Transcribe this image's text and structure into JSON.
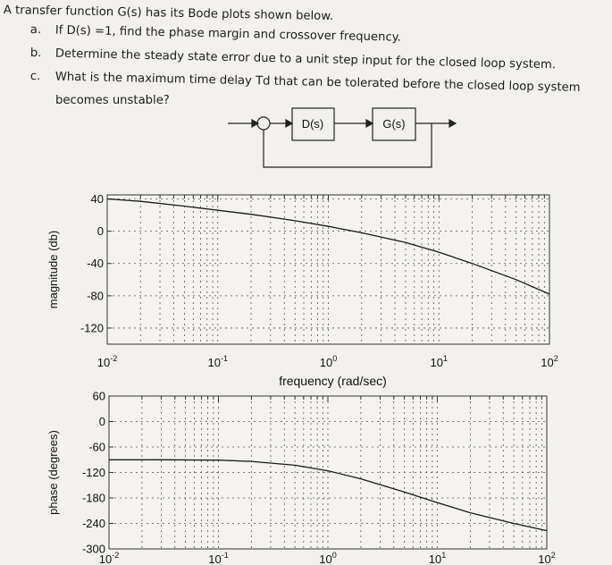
{
  "problem": {
    "intro": "A transfer function G(s) has its Bode plots shown below.",
    "parts": [
      {
        "label": "a.",
        "text": "If D(s) =1, find the phase margin and crossover frequency."
      },
      {
        "label": "b.",
        "text": "Determine the steady state error due to a unit step input for the closed loop system."
      },
      {
        "label": "c.",
        "text": "What is the maximum time delay Td that can be tolerated before the closed loop system"
      }
    ],
    "continuation": "becomes unstable?"
  },
  "block_diagram": {
    "controller": "D(s)",
    "plant": "G(s)"
  },
  "chart_data": [
    {
      "type": "line",
      "title": "",
      "xlabel": "frequency (rad/sec)",
      "ylabel": "magnitude (db)",
      "xscale": "log",
      "xlim": [
        0.01,
        100
      ],
      "ylim": [
        -140,
        45
      ],
      "xticks": [
        "10^-2",
        "10^-1",
        "10^0",
        "10^1",
        "10^2"
      ],
      "yticks": [
        "40",
        "0",
        "-40",
        "-80",
        "-120"
      ],
      "grid": true,
      "series": [
        {
          "x": [
            0.01,
            0.02,
            0.05,
            0.1,
            0.2,
            0.5,
            1,
            2,
            5,
            10,
            20,
            50,
            100
          ],
          "y": [
            40,
            37,
            31,
            26,
            21,
            13,
            6,
            -2,
            -14,
            -26,
            -40,
            -60,
            -78
          ]
        }
      ]
    },
    {
      "type": "line",
      "title": "",
      "xlabel": "",
      "ylabel": "phase (degrees)",
      "xscale": "log",
      "xlim": [
        0.01,
        100
      ],
      "ylim": [
        -300,
        60
      ],
      "xticks": [
        "10^-2",
        "10^-1",
        "10^0",
        "10^1",
        "10^2"
      ],
      "yticks": [
        "60",
        "0",
        "-60",
        "-120",
        "-180",
        "-240",
        "-300"
      ],
      "grid": true,
      "series": [
        {
          "x": [
            0.01,
            0.03,
            0.1,
            0.2,
            0.5,
            1,
            2,
            5,
            10,
            20,
            50,
            100
          ],
          "y": [
            -90,
            -90,
            -91,
            -94,
            -103,
            -116,
            -135,
            -166,
            -191,
            -215,
            -240,
            -257
          ]
        }
      ]
    }
  ]
}
